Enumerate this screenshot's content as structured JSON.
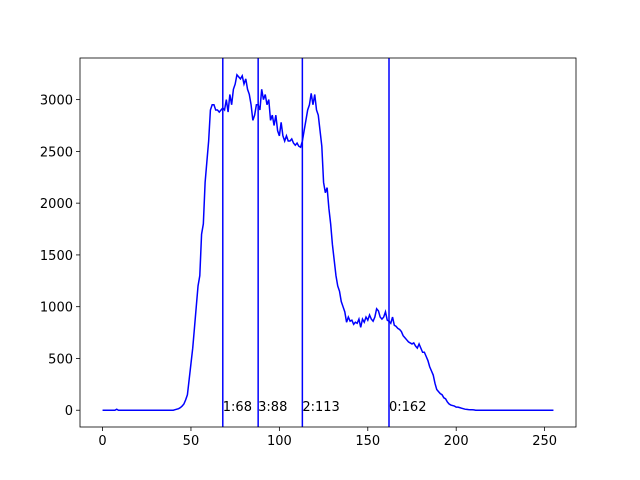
{
  "chart_data": {
    "type": "line",
    "color": "#0000ff",
    "vline_color": "#0000ff",
    "x": [
      0,
      1,
      2,
      3,
      4,
      5,
      6,
      7,
      8,
      9,
      10,
      11,
      12,
      13,
      14,
      15,
      16,
      17,
      18,
      19,
      20,
      21,
      22,
      23,
      24,
      25,
      26,
      27,
      28,
      29,
      30,
      31,
      32,
      33,
      34,
      35,
      36,
      37,
      38,
      39,
      40,
      41,
      42,
      43,
      44,
      45,
      46,
      47,
      48,
      49,
      50,
      51,
      52,
      53,
      54,
      55,
      56,
      57,
      58,
      59,
      60,
      61,
      62,
      63,
      64,
      65,
      66,
      67,
      68,
      69,
      70,
      71,
      72,
      73,
      74,
      75,
      76,
      77,
      78,
      79,
      80,
      81,
      82,
      83,
      84,
      85,
      86,
      87,
      88,
      89,
      90,
      91,
      92,
      93,
      94,
      95,
      96,
      97,
      98,
      99,
      100,
      101,
      102,
      103,
      104,
      105,
      106,
      107,
      108,
      109,
      110,
      111,
      112,
      113,
      114,
      115,
      116,
      117,
      118,
      119,
      120,
      121,
      122,
      123,
      124,
      125,
      126,
      127,
      128,
      129,
      130,
      131,
      132,
      133,
      134,
      135,
      136,
      137,
      138,
      139,
      140,
      141,
      142,
      143,
      144,
      145,
      146,
      147,
      148,
      149,
      150,
      151,
      152,
      153,
      154,
      155,
      156,
      157,
      158,
      159,
      160,
      161,
      162,
      163,
      164,
      165,
      166,
      167,
      168,
      169,
      170,
      171,
      172,
      173,
      174,
      175,
      176,
      177,
      178,
      179,
      180,
      181,
      182,
      183,
      184,
      185,
      186,
      187,
      188,
      189,
      190,
      191,
      192,
      193,
      194,
      195,
      196,
      197,
      198,
      199,
      200,
      201,
      202,
      203,
      204,
      205,
      206,
      207,
      208,
      209,
      210,
      211,
      212,
      213,
      214,
      215,
      216,
      217,
      218,
      219,
      220,
      221,
      222,
      223,
      224,
      225,
      226,
      227,
      228,
      229,
      230,
      231,
      232,
      233,
      234,
      235,
      236,
      237,
      238,
      239,
      240,
      241,
      242,
      243,
      244,
      245,
      246,
      247,
      248,
      249,
      250,
      251,
      252,
      253,
      254,
      255
    ],
    "values": [
      0,
      0,
      0,
      0,
      0,
      0,
      0,
      0,
      10,
      0,
      0,
      0,
      0,
      0,
      0,
      0,
      0,
      0,
      0,
      0,
      0,
      0,
      0,
      0,
      0,
      0,
      0,
      0,
      0,
      0,
      0,
      0,
      0,
      0,
      0,
      0,
      0,
      0,
      0,
      0,
      0,
      5,
      10,
      15,
      25,
      40,
      60,
      100,
      150,
      300,
      450,
      600,
      800,
      1000,
      1200,
      1300,
      1700,
      1800,
      2200,
      2400,
      2600,
      2900,
      2950,
      2950,
      2900,
      2900,
      2880,
      2900,
      2920,
      2900,
      3000,
      2880,
      3050,
      2950,
      3100,
      3150,
      3240,
      3220,
      3200,
      3230,
      3150,
      3200,
      3100,
      3050,
      2950,
      2800,
      2850,
      2950,
      2950,
      2900,
      3100,
      3000,
      3050,
      2950,
      3000,
      2800,
      2850,
      2750,
      2850,
      2700,
      2650,
      2780,
      2650,
      2600,
      2650,
      2600,
      2600,
      2620,
      2580,
      2560,
      2580,
      2550,
      2540,
      2600,
      2700,
      2800,
      2900,
      2950,
      3060,
      2950,
      3050,
      2900,
      2850,
      2700,
      2550,
      2200,
      2100,
      2150,
      1950,
      1800,
      1600,
      1450,
      1300,
      1200,
      1150,
      1050,
      1000,
      950,
      850,
      900,
      860,
      870,
      830,
      850,
      840,
      880,
      800,
      880,
      850,
      900,
      870,
      920,
      880,
      860,
      900,
      980,
      960,
      900,
      880,
      900,
      950,
      870,
      860,
      840,
      900,
      820,
      810,
      790,
      780,
      760,
      720,
      700,
      680,
      660,
      650,
      640,
      650,
      620,
      600,
      640,
      600,
      560,
      560,
      520,
      480,
      420,
      380,
      340,
      260,
      200,
      180,
      160,
      150,
      120,
      110,
      80,
      60,
      50,
      45,
      40,
      30,
      30,
      25,
      20,
      15,
      10,
      8,
      6,
      5,
      4,
      3,
      0,
      0,
      0,
      0,
      0,
      0,
      0,
      0,
      0,
      0,
      0,
      0,
      0,
      0,
      0,
      0,
      0,
      0,
      0,
      0,
      0,
      0,
      0,
      0,
      0,
      0,
      0,
      0,
      0,
      0,
      0,
      0,
      0,
      0,
      0,
      0,
      0,
      0,
      0,
      0,
      0,
      0,
      0,
      0,
      0
    ],
    "vlines": [
      {
        "x": 68,
        "label": "1:68"
      },
      {
        "x": 88,
        "label": "3:88"
      },
      {
        "x": 113,
        "label": "2:113"
      },
      {
        "x": 162,
        "label": "0:162"
      }
    ],
    "xlim": [
      -12.75,
      267.75
    ],
    "ylim": [
      -162,
      3402
    ],
    "xticks": [
      0,
      50,
      100,
      150,
      200,
      250
    ],
    "yticks": [
      0,
      500,
      1000,
      1500,
      2000,
      2500,
      3000
    ]
  }
}
